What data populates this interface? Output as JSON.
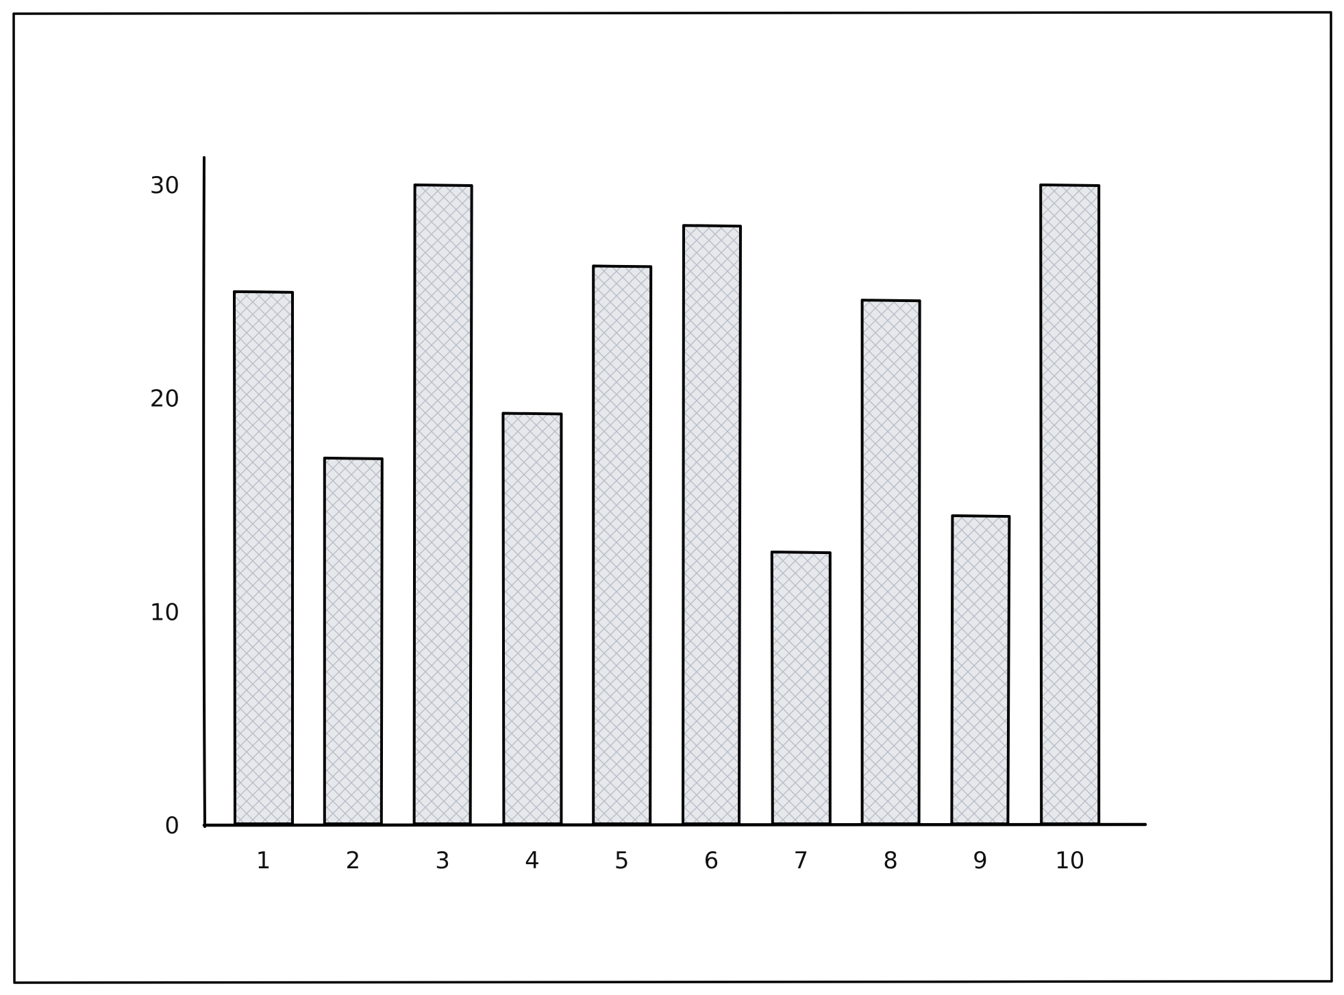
{
  "chart_data": {
    "type": "bar",
    "title": "",
    "xlabel": "",
    "ylabel": "",
    "categories": [
      "1",
      "2",
      "3",
      "4",
      "5",
      "6",
      "7",
      "8",
      "9",
      "10"
    ],
    "values": [
      25.0,
      17.2,
      30.0,
      19.3,
      26.2,
      28.1,
      12.8,
      24.6,
      14.5,
      30.0
    ],
    "ylim": [
      0,
      30
    ],
    "yticks": [
      0,
      10,
      20,
      30
    ],
    "ytick_labels": [
      "0",
      "10",
      "20",
      "30"
    ],
    "grid": false,
    "legend": "none",
    "style": "hand-drawn sketch",
    "colors": {
      "bar_fill": "#e6e8ec",
      "bar_hatch": "#b8bec7",
      "bar_outline": "#000000",
      "axis": "#000000",
      "frame": "#000000",
      "text": "#111111"
    }
  }
}
